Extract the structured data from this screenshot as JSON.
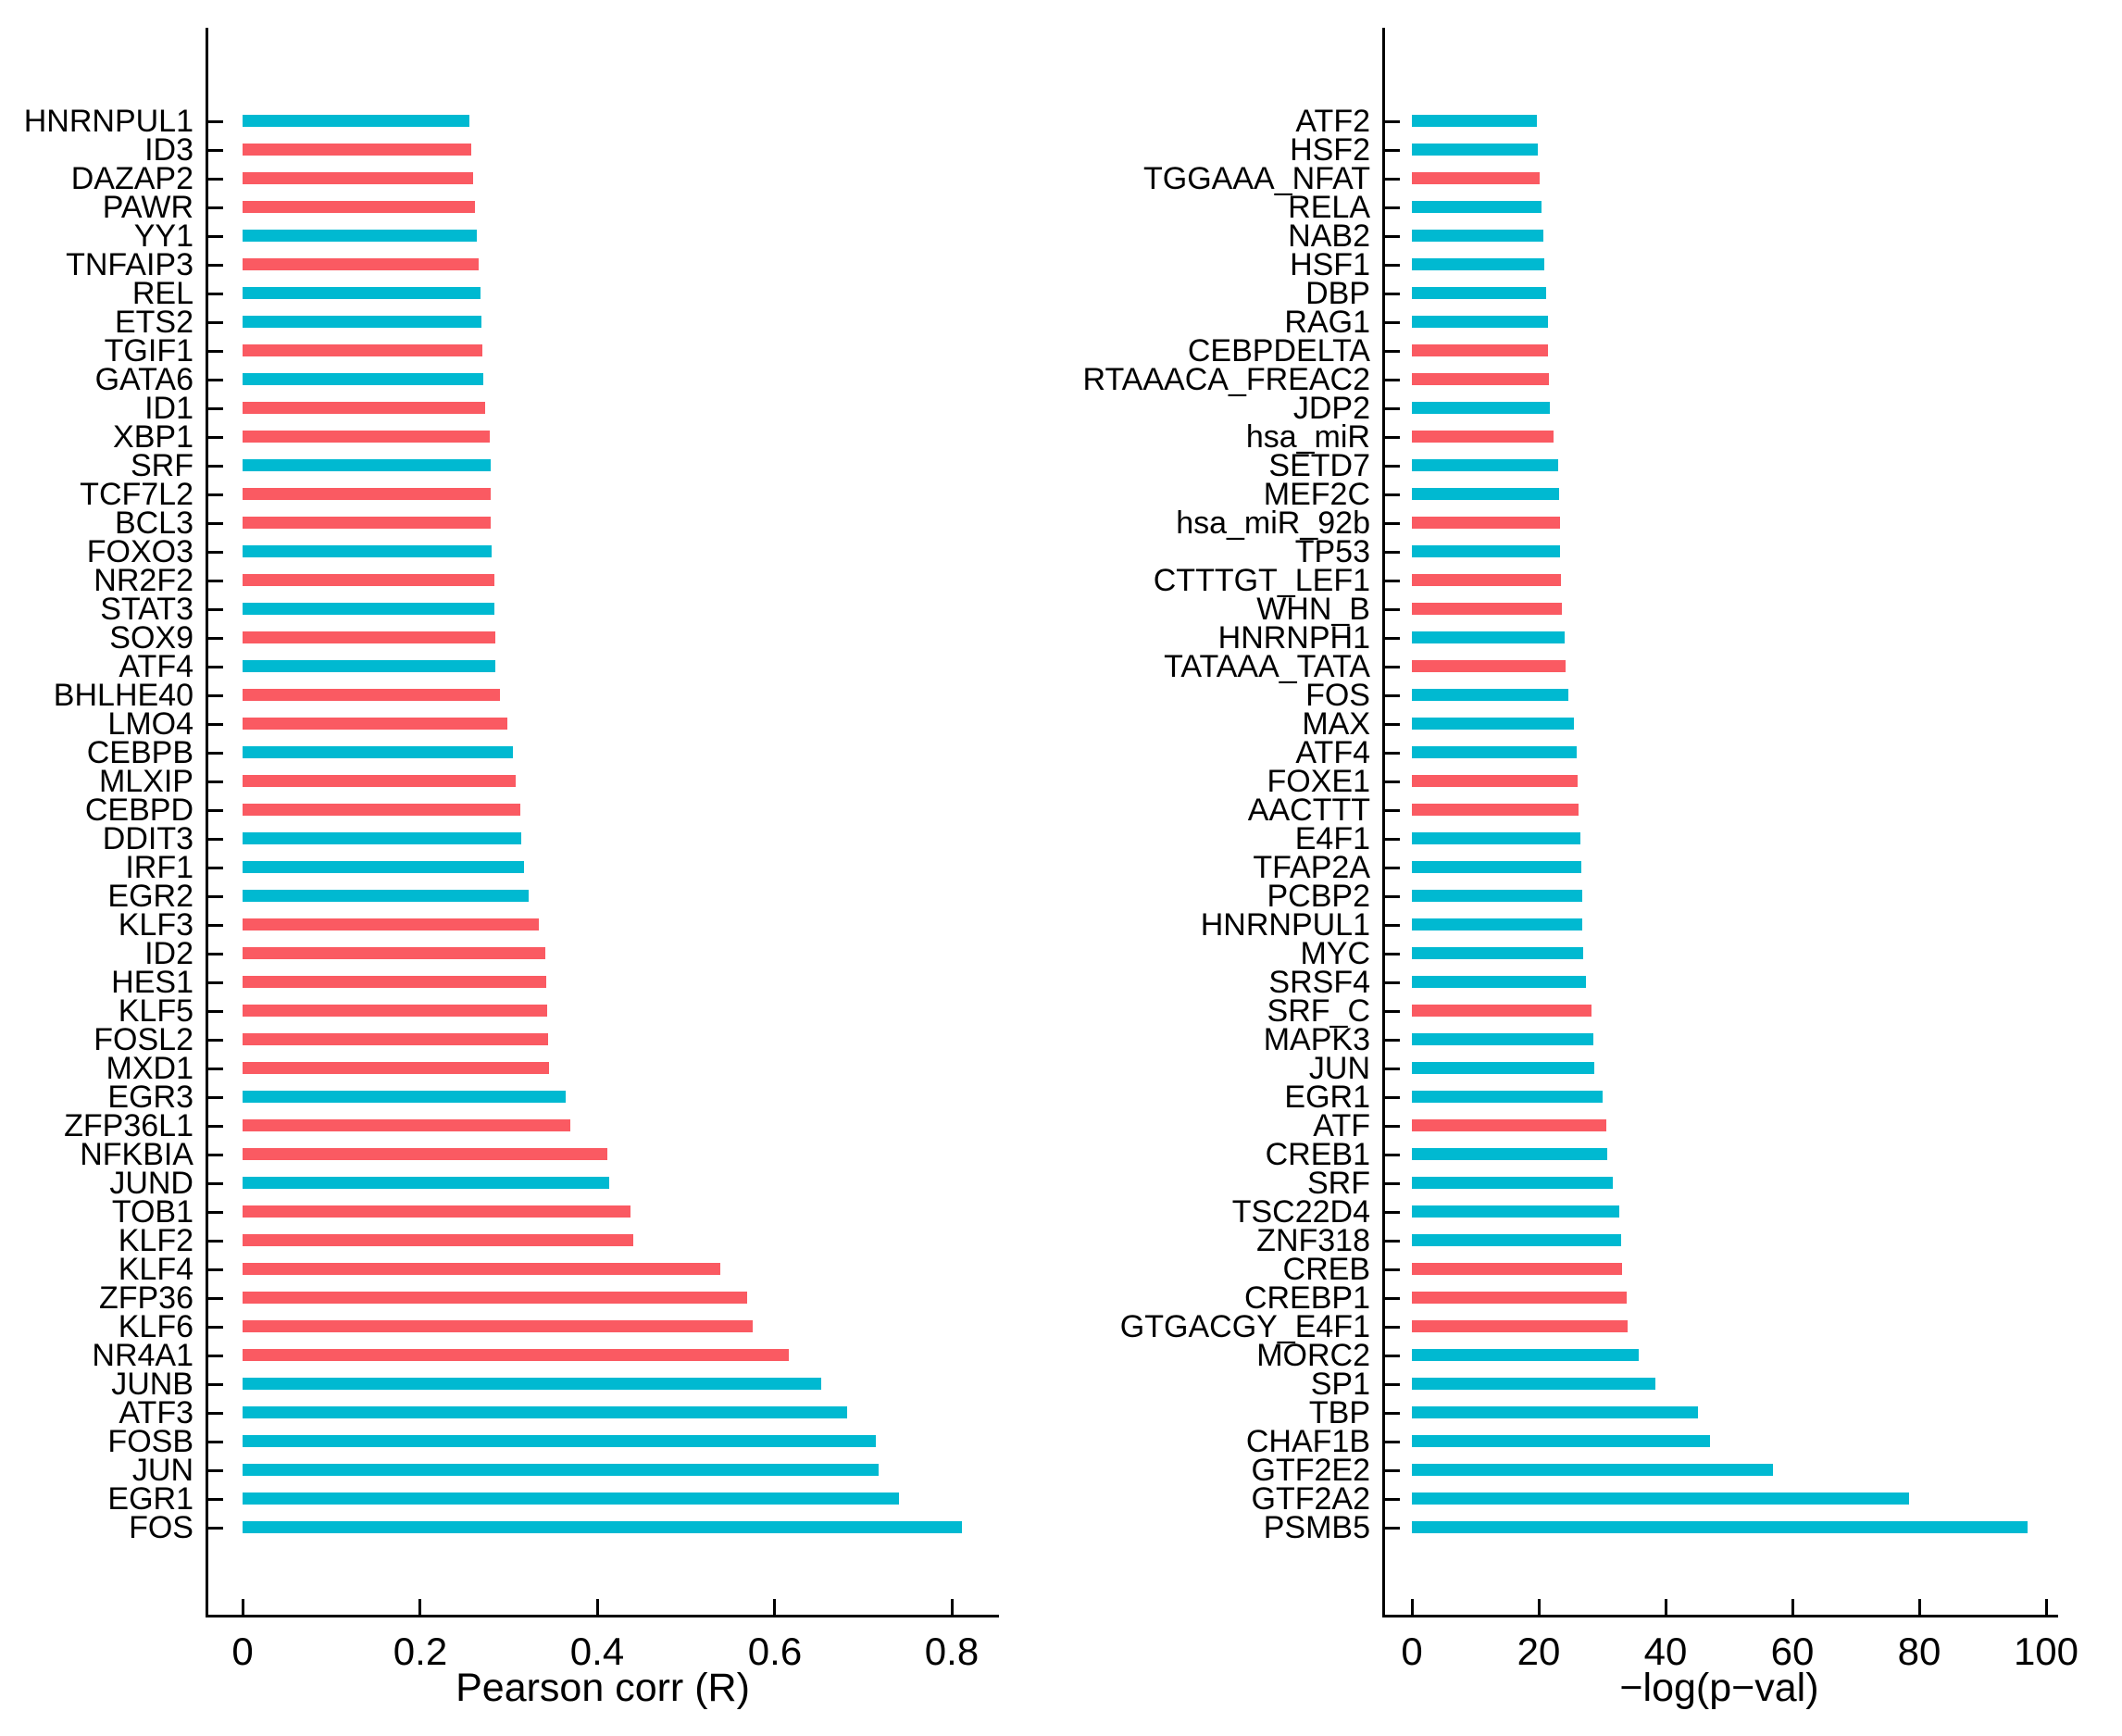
{
  "palette": {
    "cyan": "#00b9d1",
    "red": "#fa5a62",
    "axis": "#000000",
    "background": "#ffffff"
  },
  "chart_data": [
    {
      "type": "bar",
      "orientation": "horizontal",
      "title": "",
      "xlabel": "Pearson corr (R)",
      "ylabel": "",
      "xlim": [
        0,
        0.853
      ],
      "xticks": [
        0,
        0.2,
        0.4,
        0.6,
        0.8
      ],
      "xtick_labels": [
        "0",
        "0.2",
        "0.4",
        "0.6",
        "0.8"
      ],
      "grid": false,
      "legend": null,
      "categories": [
        "HNRNPUL1",
        "ID3",
        "DAZAP2",
        "PAWR",
        "YY1",
        "TNFAIP3",
        "REL",
        "ETS2",
        "TGIF1",
        "GATA6",
        "ID1",
        "XBP1",
        "SRF",
        "TCF7L2",
        "BCL3",
        "FOXO3",
        "NR2F2",
        "STAT3",
        "SOX9",
        "ATF4",
        "BHLHE40",
        "LMO4",
        "CEBPB",
        "MLXIP",
        "CEBPD",
        "DDIT3",
        "IRF1",
        "EGR2",
        "KLF3",
        "ID2",
        "HES1",
        "KLF5",
        "FOSL2",
        "MXD1",
        "EGR3",
        "ZFP36L1",
        "NFKBIA",
        "JUND",
        "TOB1",
        "KLF2",
        "KLF4",
        "ZFP36",
        "KLF6",
        "NR4A1",
        "JUNB",
        "ATF3",
        "FOSB",
        "JUN",
        "EGR1",
        "FOS"
      ],
      "values": [
        0.256,
        0.258,
        0.26,
        0.262,
        0.264,
        0.266,
        0.268,
        0.269,
        0.271,
        0.272,
        0.274,
        0.279,
        0.28,
        0.28,
        0.28,
        0.281,
        0.284,
        0.284,
        0.285,
        0.285,
        0.29,
        0.299,
        0.305,
        0.308,
        0.313,
        0.314,
        0.318,
        0.323,
        0.334,
        0.342,
        0.343,
        0.344,
        0.345,
        0.346,
        0.364,
        0.37,
        0.412,
        0.414,
        0.438,
        0.441,
        0.539,
        0.569,
        0.575,
        0.616,
        0.653,
        0.682,
        0.714,
        0.718,
        0.74,
        0.812
      ],
      "bar_colors": [
        "cyan",
        "red",
        "red",
        "red",
        "cyan",
        "red",
        "cyan",
        "cyan",
        "red",
        "cyan",
        "red",
        "red",
        "cyan",
        "red",
        "red",
        "cyan",
        "red",
        "cyan",
        "red",
        "cyan",
        "red",
        "red",
        "cyan",
        "red",
        "red",
        "cyan",
        "cyan",
        "cyan",
        "red",
        "red",
        "red",
        "red",
        "red",
        "red",
        "cyan",
        "red",
        "red",
        "cyan",
        "red",
        "red",
        "red",
        "red",
        "red",
        "red",
        "cyan",
        "cyan",
        "cyan",
        "cyan",
        "cyan",
        "cyan"
      ]
    },
    {
      "type": "bar",
      "orientation": "horizontal",
      "title": "",
      "xlabel": "−log(p−val)",
      "ylabel": "",
      "xlim": [
        0,
        102
      ],
      "xticks": [
        0,
        20,
        40,
        60,
        80,
        100
      ],
      "xtick_labels": [
        "0",
        "20",
        "40",
        "60",
        "80",
        "100"
      ],
      "grid": false,
      "legend": null,
      "categories": [
        "ATF2",
        "HSF2",
        "TGGAAA_NFAT",
        "RELA",
        "NAB2",
        "HSF1",
        "DBP",
        "RAG1",
        "CEBPDELTA",
        "RTAAACA_FREAC2",
        "JDP2",
        "hsa_miR",
        "SETD7",
        "MEF2C",
        "hsa_miR_92b",
        "TP53",
        "CTTTGT_LEF1",
        "WHN_B",
        "HNRNPH1",
        "TATAAA_TATA",
        "FOS",
        "MAX",
        "ATF4",
        "FOXE1",
        "AACTTT",
        "E4F1",
        "TFAP2A",
        "PCBP2",
        "HNRNPUL1",
        "MYC",
        "SRSF4",
        "SRF_C",
        "MAPK3",
        "JUN",
        "EGR1",
        "ATF",
        "CREB1",
        "SRF",
        "TSC22D4",
        "ZNF318",
        "CREB",
        "CREBP1",
        "GTGACGY_E4F1",
        "MORC2",
        "SP1",
        "TBP",
        "CHAF1B",
        "GTF2E2",
        "GTF2A2",
        "PSMB5"
      ],
      "values": [
        19.7,
        19.8,
        20.2,
        20.4,
        20.7,
        20.9,
        21.1,
        21.4,
        21.5,
        21.6,
        21.7,
        22.4,
        23.1,
        23.2,
        23.3,
        23.4,
        23.5,
        23.6,
        24.1,
        24.2,
        24.7,
        25.6,
        26.0,
        26.2,
        26.3,
        26.6,
        26.7,
        26.8,
        26.9,
        27.0,
        27.4,
        28.3,
        28.6,
        28.7,
        30.1,
        30.7,
        30.8,
        31.7,
        32.7,
        33.0,
        33.1,
        33.9,
        34.0,
        35.8,
        38.4,
        45.1,
        47.0,
        56.9,
        78.4,
        97.1
      ],
      "bar_colors": [
        "cyan",
        "cyan",
        "red",
        "cyan",
        "cyan",
        "cyan",
        "cyan",
        "cyan",
        "red",
        "red",
        "cyan",
        "red",
        "cyan",
        "cyan",
        "red",
        "cyan",
        "red",
        "red",
        "cyan",
        "red",
        "cyan",
        "cyan",
        "cyan",
        "red",
        "red",
        "cyan",
        "cyan",
        "cyan",
        "cyan",
        "cyan",
        "cyan",
        "red",
        "cyan",
        "cyan",
        "cyan",
        "red",
        "cyan",
        "cyan",
        "cyan",
        "cyan",
        "red",
        "red",
        "red",
        "cyan",
        "cyan",
        "cyan",
        "cyan",
        "cyan",
        "cyan",
        "cyan"
      ]
    }
  ]
}
